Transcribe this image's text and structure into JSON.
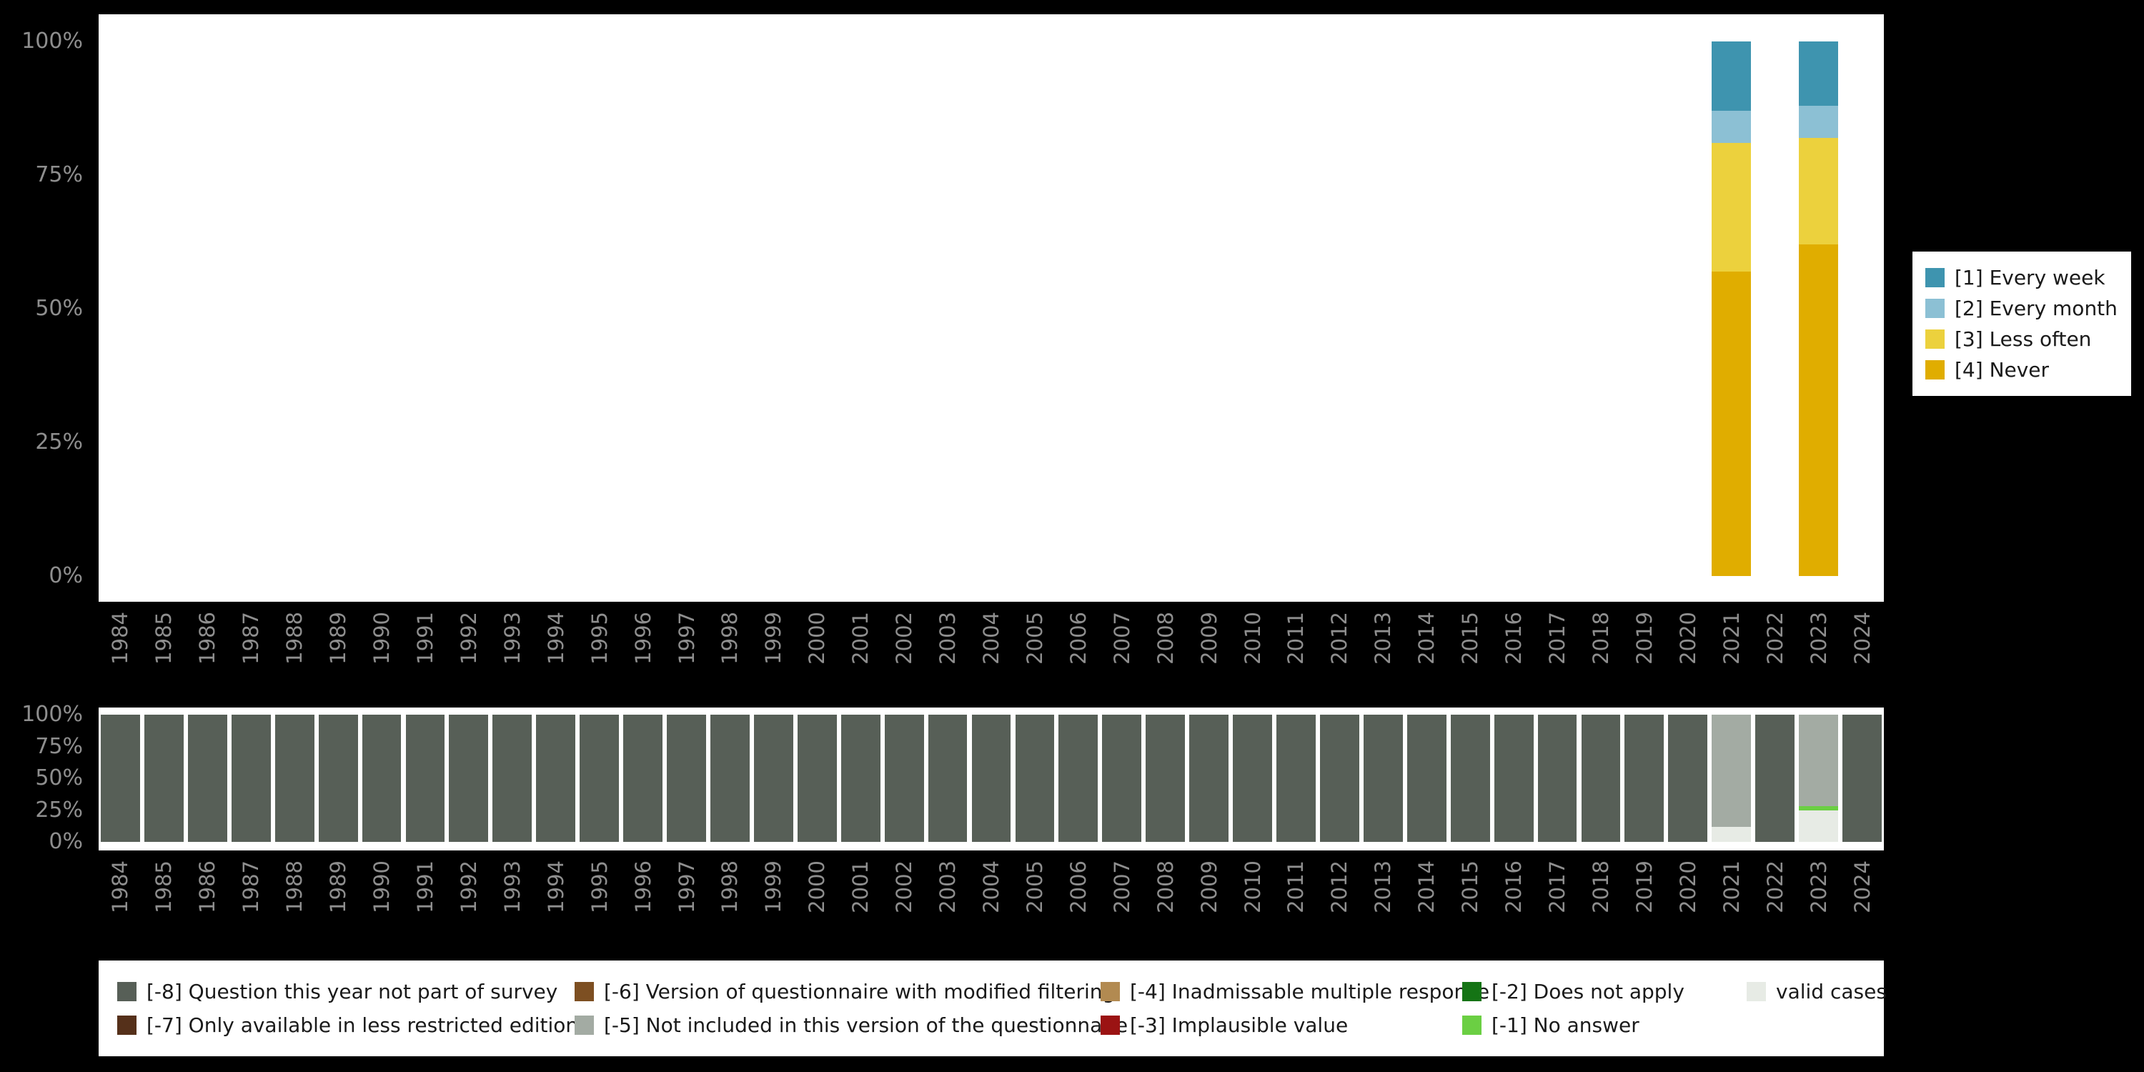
{
  "figure": {
    "background": "#000000",
    "panel_background": "#ffffff",
    "axis_text_color": "#8e8e8e"
  },
  "chart_data": [
    {
      "type": "bar",
      "stacked": true,
      "title": "",
      "xlabel": "",
      "ylabel": "",
      "ylim": [
        0,
        100
      ],
      "unit": "percent",
      "grid": false,
      "x": [
        1984,
        1985,
        1986,
        1987,
        1988,
        1989,
        1990,
        1991,
        1992,
        1993,
        1994,
        1995,
        1996,
        1997,
        1998,
        1999,
        2000,
        2001,
        2002,
        2003,
        2004,
        2005,
        2006,
        2007,
        2008,
        2009,
        2010,
        2011,
        2012,
        2013,
        2014,
        2015,
        2016,
        2017,
        2018,
        2019,
        2020,
        2021,
        2022,
        2023,
        2024
      ],
      "y_ticks": [
        "100%",
        "75%",
        "50%",
        "25%",
        "0%"
      ],
      "stack_order": "bottom-to-top",
      "series": [
        {
          "name": "[4] Never",
          "color": "#e0ad00",
          "values": [
            0,
            0,
            0,
            0,
            0,
            0,
            0,
            0,
            0,
            0,
            0,
            0,
            0,
            0,
            0,
            0,
            0,
            0,
            0,
            0,
            0,
            0,
            0,
            0,
            0,
            0,
            0,
            0,
            0,
            0,
            0,
            0,
            0,
            0,
            0,
            0,
            0,
            57,
            0,
            62,
            0
          ]
        },
        {
          "name": "[3] Less often",
          "color": "#ecd13d",
          "values": [
            0,
            0,
            0,
            0,
            0,
            0,
            0,
            0,
            0,
            0,
            0,
            0,
            0,
            0,
            0,
            0,
            0,
            0,
            0,
            0,
            0,
            0,
            0,
            0,
            0,
            0,
            0,
            0,
            0,
            0,
            0,
            0,
            0,
            0,
            0,
            0,
            0,
            24,
            0,
            20,
            0
          ]
        },
        {
          "name": "[2] Every month",
          "color": "#8cc0d4",
          "values": [
            0,
            0,
            0,
            0,
            0,
            0,
            0,
            0,
            0,
            0,
            0,
            0,
            0,
            0,
            0,
            0,
            0,
            0,
            0,
            0,
            0,
            0,
            0,
            0,
            0,
            0,
            0,
            0,
            0,
            0,
            0,
            0,
            0,
            0,
            0,
            0,
            0,
            6,
            0,
            6,
            0
          ]
        },
        {
          "name": "[1] Every week",
          "color": "#3e94af",
          "values": [
            0,
            0,
            0,
            0,
            0,
            0,
            0,
            0,
            0,
            0,
            0,
            0,
            0,
            0,
            0,
            0,
            0,
            0,
            0,
            0,
            0,
            0,
            0,
            0,
            0,
            0,
            0,
            0,
            0,
            0,
            0,
            0,
            0,
            0,
            0,
            0,
            0,
            13,
            0,
            12,
            0
          ]
        }
      ],
      "legend": {
        "position": "right",
        "entries": [
          {
            "label": "[1] Every week",
            "color": "#3e94af"
          },
          {
            "label": "[2] Every month",
            "color": "#8cc0d4"
          },
          {
            "label": "[3] Less often",
            "color": "#ecd13d"
          },
          {
            "label": "[4] Never",
            "color": "#e0ad00"
          }
        ]
      }
    },
    {
      "type": "bar",
      "stacked": true,
      "title": "",
      "xlabel": "",
      "ylabel": "",
      "ylim": [
        0,
        100
      ],
      "unit": "percent",
      "grid": false,
      "x": [
        1984,
        1985,
        1986,
        1987,
        1988,
        1989,
        1990,
        1991,
        1992,
        1993,
        1994,
        1995,
        1996,
        1997,
        1998,
        1999,
        2000,
        2001,
        2002,
        2003,
        2004,
        2005,
        2006,
        2007,
        2008,
        2009,
        2010,
        2011,
        2012,
        2013,
        2014,
        2015,
        2016,
        2017,
        2018,
        2019,
        2020,
        2021,
        2022,
        2023,
        2024
      ],
      "y_ticks": [
        "100%",
        "75%",
        "50%",
        "25%",
        "0%"
      ],
      "stack_order": "bottom-to-top",
      "series": [
        {
          "name": "valid cases",
          "color": "#e7ebe5",
          "values": [
            0,
            0,
            0,
            0,
            0,
            0,
            0,
            0,
            0,
            0,
            0,
            0,
            0,
            0,
            0,
            0,
            0,
            0,
            0,
            0,
            0,
            0,
            0,
            0,
            0,
            0,
            0,
            0,
            0,
            0,
            0,
            0,
            0,
            0,
            0,
            0,
            0,
            12,
            0,
            25,
            0
          ]
        },
        {
          "name": "[-1] No answer",
          "color": "#6bcf43",
          "values": [
            0,
            0,
            0,
            0,
            0,
            0,
            0,
            0,
            0,
            0,
            0,
            0,
            0,
            0,
            0,
            0,
            0,
            0,
            0,
            0,
            0,
            0,
            0,
            0,
            0,
            0,
            0,
            0,
            0,
            0,
            0,
            0,
            0,
            0,
            0,
            0,
            0,
            0,
            0,
            3,
            0
          ]
        },
        {
          "name": "[-5] Not included in this version of the questionnaire",
          "color": "#a3aba3",
          "values": [
            0,
            0,
            0,
            0,
            0,
            0,
            0,
            0,
            0,
            0,
            0,
            0,
            0,
            0,
            0,
            0,
            0,
            0,
            0,
            0,
            0,
            0,
            0,
            0,
            0,
            0,
            0,
            0,
            0,
            0,
            0,
            0,
            0,
            0,
            0,
            0,
            0,
            88,
            0,
            72,
            0
          ]
        },
        {
          "name": "[-8] Question this year not part of survey",
          "color": "#575f57",
          "values": [
            100,
            100,
            100,
            100,
            100,
            100,
            100,
            100,
            100,
            100,
            100,
            100,
            100,
            100,
            100,
            100,
            100,
            100,
            100,
            100,
            100,
            100,
            100,
            100,
            100,
            100,
            100,
            100,
            100,
            100,
            100,
            100,
            100,
            100,
            100,
            100,
            100,
            0,
            100,
            0,
            100
          ]
        }
      ],
      "legend": {
        "position": "bottom",
        "entries": [
          {
            "label": "[-8] Question this year not part of survey",
            "color": "#575f57"
          },
          {
            "label": "[-7] Only available in less restricted edition",
            "color": "#55301a"
          },
          {
            "label": "[-6] Version of questionnaire with modified filtering",
            "color": "#7d4f22"
          },
          {
            "label": "[-5] Not included in this version of the questionnaire",
            "color": "#a3aba3"
          },
          {
            "label": "[-4] Inadmissable multiple response",
            "color": "#b28a51"
          },
          {
            "label": "[-3] Implausible value",
            "color": "#9b1313"
          },
          {
            "label": "[-2] Does not apply",
            "color": "#157415"
          },
          {
            "label": "[-1] No answer",
            "color": "#6bcf43"
          },
          {
            "label": "valid cases",
            "color": "#e7ebe5"
          }
        ]
      }
    }
  ]
}
